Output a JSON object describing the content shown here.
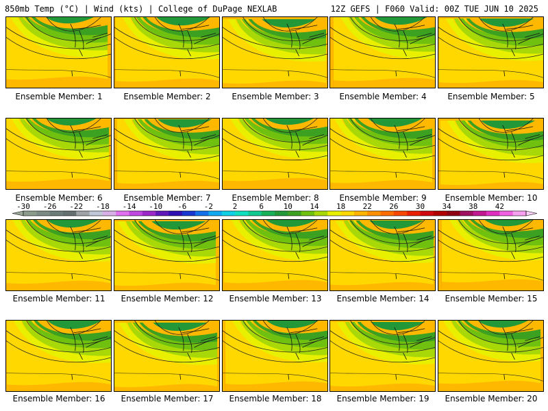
{
  "header": {
    "left": "850mb Temp (°C) | Wind (kts) | College of DuPage NEXLAB",
    "right": "12Z GEFS | F060 Valid: 00Z TUE JUN 10 2025"
  },
  "members": [
    "Ensemble Member: 1",
    "Ensemble Member: 2",
    "Ensemble Member: 3",
    "Ensemble Member: 4",
    "Ensemble Member: 5",
    "Ensemble Member: 6",
    "Ensemble Member: 7",
    "Ensemble Member: 8",
    "Ensemble Member: 9",
    "Ensemble Member: 10",
    "Ensemble Member: 11",
    "Ensemble Member: 12",
    "Ensemble Member: 13",
    "Ensemble Member: 14",
    "Ensemble Member: 15",
    "Ensemble Member: 16",
    "Ensemble Member: 17",
    "Ensemble Member: 18",
    "Ensemble Member: 19",
    "Ensemble Member: 20"
  ],
  "colorbar": {
    "ticks": [
      "-30",
      "-26",
      "-22",
      "-18",
      "-14",
      "-10",
      "-6",
      "-2",
      "2",
      "6",
      "10",
      "14",
      "18",
      "22",
      "26",
      "30",
      "34",
      "38",
      "42"
    ],
    "colors": [
      "#8c9c8c",
      "#7c8c84",
      "#6c7c78",
      "#647070",
      "#a0a4a8",
      "#c0c8d8",
      "#d8b0e8",
      "#e070f0",
      "#c048e0",
      "#9c28c8",
      "#6018b8",
      "#3010b0",
      "#1838d0",
      "#1470e8",
      "#10a8f0",
      "#10d0e8",
      "#10e0c0",
      "#10c890",
      "#18b058",
      "#229838",
      "#3ca020",
      "#70c010",
      "#a8d808",
      "#e8f000",
      "#ffd800",
      "#ffb400",
      "#ff9000",
      "#ff6c00",
      "#f84800",
      "#e82000",
      "#d00810",
      "#b00000",
      "#900010",
      "#a01060",
      "#c01890",
      "#e030c0",
      "#f060e0",
      "#f8a0f0"
    ]
  }
}
